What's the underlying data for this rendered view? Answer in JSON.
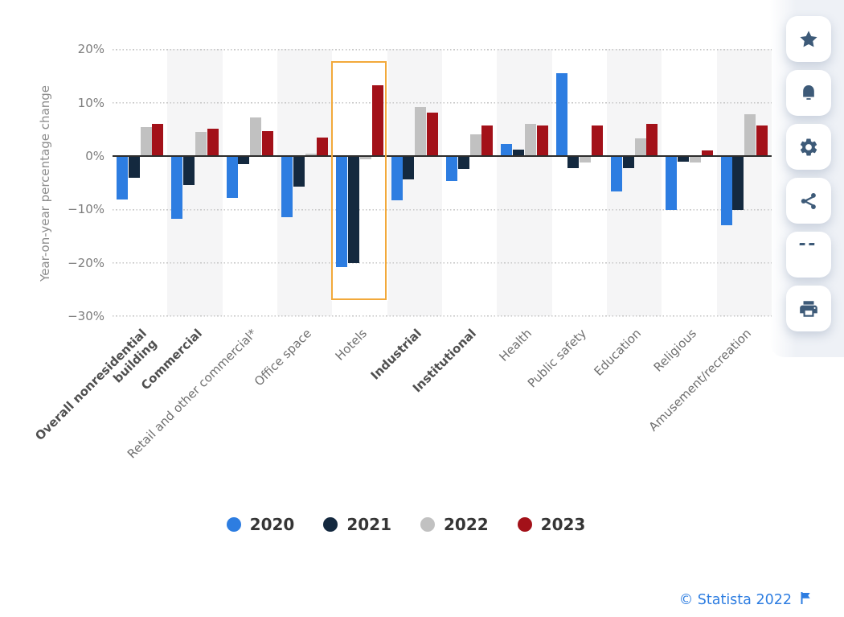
{
  "chart_data": {
    "type": "bar",
    "title": "",
    "xlabel": "",
    "ylabel": "Year-on-year percentage change",
    "ylim": [
      -30,
      20
    ],
    "yticks": [
      20,
      10,
      0,
      -10,
      -20,
      -30
    ],
    "ytick_labels": [
      "20%",
      "10%",
      "0%",
      "−10%",
      "−20%",
      "−30%"
    ],
    "grid": "horizontal-dotted",
    "legend_position": "bottom",
    "categories": [
      "Overall nonresidential\nbuilding",
      "Commercial",
      "Retail and other commercial*",
      "Office space",
      "Hotels",
      "Industrial",
      "Institutional",
      "Health",
      "Public safety",
      "Education",
      "Religious",
      "Amusement/recreation"
    ],
    "bold_categories": [
      true,
      true,
      false,
      false,
      false,
      true,
      true,
      false,
      false,
      false,
      false,
      false
    ],
    "series": [
      {
        "name": "2020",
        "color": "#2D7DE1",
        "values": [
          -8.1,
          -11.7,
          -7.8,
          -11.4,
          -20.8,
          -8.3,
          -4.7,
          2.3,
          15.5,
          -6.6,
          -10.1,
          -13.0
        ]
      },
      {
        "name": "2021",
        "color": "#14293F",
        "values": [
          -4.0,
          -5.4,
          -1.5,
          -5.8,
          -20.0,
          -4.4,
          -2.4,
          1.2,
          -2.2,
          -2.2,
          -1.0,
          -10.1
        ]
      },
      {
        "name": "2022",
        "color": "#C1C1C1",
        "values": [
          5.4,
          4.5,
          7.3,
          0.5,
          -0.6,
          9.2,
          4.1,
          6.0,
          -1.2,
          3.3,
          -1.2,
          7.8
        ]
      },
      {
        "name": "2023",
        "color": "#A31119",
        "values": [
          6.0,
          5.1,
          4.7,
          3.4,
          13.3,
          8.2,
          5.7,
          5.7,
          5.7,
          6.1,
          1.1,
          5.8
        ]
      }
    ],
    "highlight": {
      "category": "Hotels",
      "border_color": "#F2A93B"
    }
  },
  "toolbar": {
    "buttons": [
      {
        "id": "favorite",
        "icon": "star-icon"
      },
      {
        "id": "alerts",
        "icon": "bell-icon"
      },
      {
        "id": "settings",
        "icon": "gear-icon"
      },
      {
        "id": "share",
        "icon": "share-icon"
      },
      {
        "id": "cite",
        "icon": "quote-icon"
      },
      {
        "id": "print",
        "icon": "print-icon"
      }
    ],
    "icon_color": "#3D5A78"
  },
  "attribution": {
    "text": "© Statista 2022",
    "color": "#2D7DE1",
    "flag_icon": "flag-icon"
  }
}
